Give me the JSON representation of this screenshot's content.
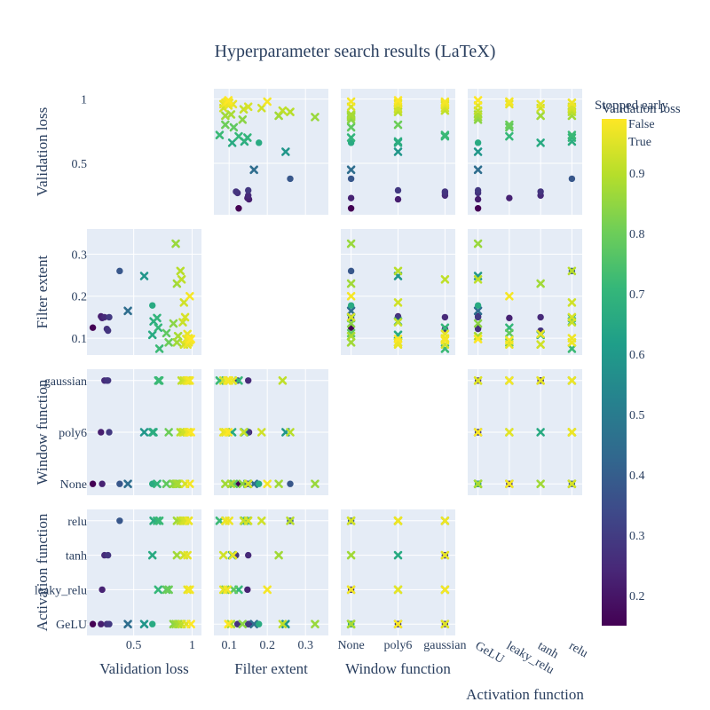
{
  "chart_data": {
    "type": "scatter",
    "title": "Hyperparameter search results (LaTeX)",
    "dimensions": [
      "Validation loss",
      "Filter extent",
      "Window function",
      "Activation function"
    ],
    "ticks": {
      "Validation loss": [
        0.5,
        1
      ],
      "Filter extent": [
        0.1,
        0.2,
        0.3
      ],
      "Window function": [
        "None",
        "poly6",
        "gaussian"
      ],
      "Activation function": [
        "GeLU",
        "leaky_relu",
        "tanh",
        "relu"
      ]
    },
    "ranges": {
      "Validation loss": [
        0.1,
        1.08
      ],
      "Filter extent": [
        0.06,
        0.36
      ]
    },
    "categories": {
      "Window function": [
        "None",
        "poly6",
        "gaussian"
      ],
      "Activation function": [
        "GeLU",
        "leaky_relu",
        "tanh",
        "relu"
      ]
    },
    "legend": {
      "title": "Stopped early",
      "items": [
        "False",
        "True"
      ],
      "marker_false": "circle",
      "marker_true": "x"
    },
    "colorbar": {
      "title": "Validation loss",
      "ticks": [
        0.2,
        0.3,
        0.4,
        0.5,
        0.6,
        0.7,
        0.8,
        0.9
      ],
      "range": [
        0.15,
        0.99
      ],
      "colorscale": [
        "#440154",
        "#482878",
        "#3e4989",
        "#31688e",
        "#26828e",
        "#1f9e89",
        "#35b779",
        "#6ece58",
        "#b5de2b",
        "#fde725"
      ]
    },
    "points": [
      {
        "loss": 0.15,
        "filter": 0.125,
        "window": "None",
        "activation": "GeLU",
        "stopped": false
      },
      {
        "loss": 0.22,
        "filter": 0.152,
        "window": "poly6",
        "activation": "GeLU",
        "stopped": false
      },
      {
        "loss": 0.23,
        "filter": 0.148,
        "window": "None",
        "activation": "leaky_relu",
        "stopped": false
      },
      {
        "loss": 0.25,
        "filter": 0.15,
        "window": "gaussian",
        "activation": "tanh",
        "stopped": false
      },
      {
        "loss": 0.27,
        "filter": 0.122,
        "window": "gaussian",
        "activation": "GeLU",
        "stopped": false
      },
      {
        "loss": 0.28,
        "filter": 0.118,
        "window": "gaussian",
        "activation": "tanh",
        "stopped": false
      },
      {
        "loss": 0.29,
        "filter": 0.15,
        "window": "poly6",
        "activation": "GeLU",
        "stopped": false
      },
      {
        "loss": 0.38,
        "filter": 0.26,
        "window": "None",
        "activation": "relu",
        "stopped": false
      },
      {
        "loss": 0.45,
        "filter": 0.165,
        "window": "None",
        "activation": "GeLU",
        "stopped": true
      },
      {
        "loss": 0.59,
        "filter": 0.248,
        "window": "poly6",
        "activation": "GeLU",
        "stopped": true
      },
      {
        "loss": 0.66,
        "filter": 0.178,
        "window": "None",
        "activation": "GeLU",
        "stopped": false
      },
      {
        "loss": 0.66,
        "filter": 0.108,
        "window": "poly6",
        "activation": "tanh",
        "stopped": true
      },
      {
        "loss": 0.67,
        "filter": 0.14,
        "window": "poly6",
        "activation": "relu",
        "stopped": true
      },
      {
        "loss": 0.7,
        "filter": 0.148,
        "window": "None",
        "activation": "relu",
        "stopped": true
      },
      {
        "loss": 0.71,
        "filter": 0.125,
        "window": "gaussian",
        "activation": "leaky_relu",
        "stopped": true
      },
      {
        "loss": 0.72,
        "filter": 0.075,
        "window": "gaussian",
        "activation": "relu",
        "stopped": true
      },
      {
        "loss": 0.78,
        "filter": 0.112,
        "window": "None",
        "activation": "leaky_relu",
        "stopped": true
      },
      {
        "loss": 0.8,
        "filter": 0.09,
        "window": "poly6",
        "activation": "leaky_relu",
        "stopped": true
      },
      {
        "loss": 0.84,
        "filter": 0.135,
        "window": "None",
        "activation": "GeLU",
        "stopped": true
      },
      {
        "loss": 0.86,
        "filter": 0.325,
        "window": "None",
        "activation": "GeLU",
        "stopped": true
      },
      {
        "loss": 0.87,
        "filter": 0.23,
        "window": "None",
        "activation": "tanh",
        "stopped": true
      },
      {
        "loss": 0.87,
        "filter": 0.09,
        "window": "None",
        "activation": "relu",
        "stopped": true
      },
      {
        "loss": 0.88,
        "filter": 0.105,
        "window": "None",
        "activation": "GeLU",
        "stopped": true
      },
      {
        "loss": 0.9,
        "filter": 0.26,
        "window": "poly6",
        "activation": "relu",
        "stopped": true
      },
      {
        "loss": 0.91,
        "filter": 0.24,
        "window": "gaussian",
        "activation": "GeLU",
        "stopped": true
      },
      {
        "loss": 0.92,
        "filter": 0.138,
        "window": "poly6",
        "activation": "relu",
        "stopped": true
      },
      {
        "loss": 0.93,
        "filter": 0.085,
        "window": "gaussian",
        "activation": "tanh",
        "stopped": true
      },
      {
        "loss": 0.93,
        "filter": 0.185,
        "window": "poly6",
        "activation": "relu",
        "stopped": true
      },
      {
        "loss": 0.94,
        "filter": 0.15,
        "window": "None",
        "activation": "relu",
        "stopped": true
      },
      {
        "loss": 0.95,
        "filter": 0.098,
        "window": "gaussian",
        "activation": "GeLU",
        "stopped": true
      },
      {
        "loss": 0.96,
        "filter": 0.085,
        "window": "poly6",
        "activation": "leaky_relu",
        "stopped": true
      },
      {
        "loss": 0.96,
        "filter": 0.11,
        "window": "gaussian",
        "activation": "tanh",
        "stopped": true
      },
      {
        "loss": 0.97,
        "filter": 0.09,
        "window": "poly6",
        "activation": "relu",
        "stopped": true
      },
      {
        "loss": 0.97,
        "filter": 0.1,
        "window": "gaussian",
        "activation": "relu",
        "stopped": true
      },
      {
        "loss": 0.98,
        "filter": 0.095,
        "window": "gaussian",
        "activation": "leaky_relu",
        "stopped": true
      },
      {
        "loss": 0.98,
        "filter": 0.2,
        "window": "None",
        "activation": "leaky_relu",
        "stopped": true
      },
      {
        "loss": 0.99,
        "filter": 0.098,
        "window": "poly6",
        "activation": "GeLU",
        "stopped": true
      }
    ]
  }
}
